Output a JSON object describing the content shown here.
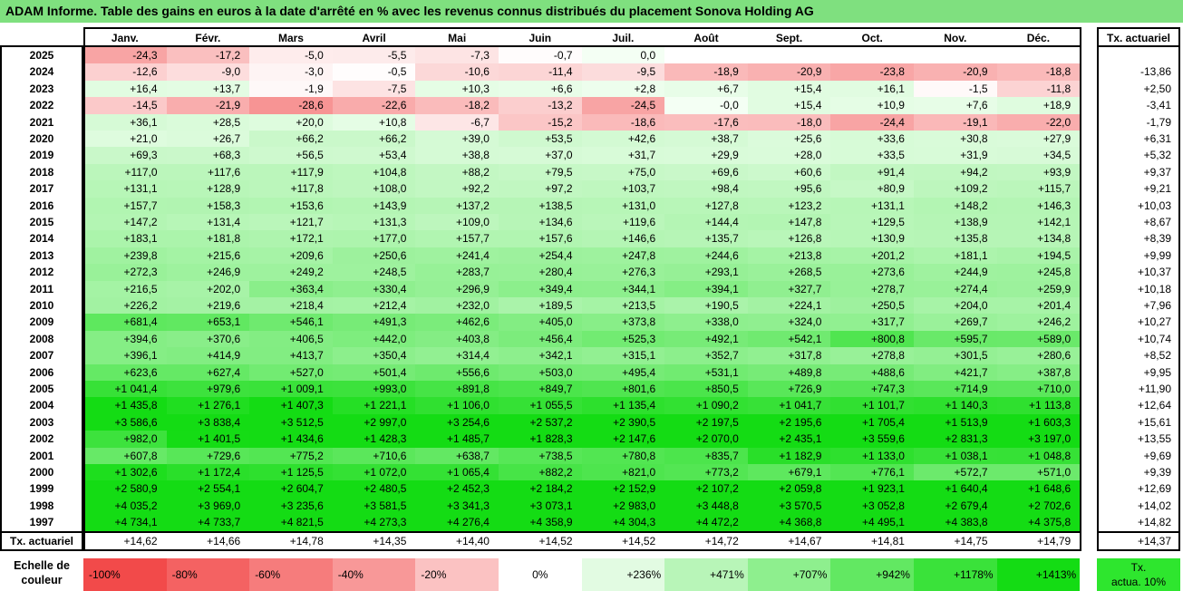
{
  "title": "ADAM Informe. Table des gains en euros à la date d'arrêté en % avec les revenus connus distribués du placement Sonova Holding AG",
  "months": [
    "Janv.",
    "Févr.",
    "Mars",
    "Avril",
    "Mai",
    "Juin",
    "Juil.",
    "Août",
    "Sept.",
    "Oct.",
    "Nov.",
    "Déc."
  ],
  "rate_header": "Tx. actuariel",
  "rows": [
    {
      "year": "2025",
      "values": [
        "-24,3",
        "-17,2",
        "-5,0",
        "-5,5",
        "-7,3",
        "-0,7",
        "0,0",
        "",
        "",
        "",
        "",
        ""
      ],
      "rate": ""
    },
    {
      "year": "2024",
      "values": [
        "-12,6",
        "-9,0",
        "-3,0",
        "-0,5",
        "-10,6",
        "-11,4",
        "-9,5",
        "-18,9",
        "-20,9",
        "-23,8",
        "-20,9",
        "-18,8"
      ],
      "rate": "-13,86"
    },
    {
      "year": "2023",
      "values": [
        "+16,4",
        "+13,7",
        "-1,9",
        "-7,5",
        "+10,3",
        "+6,6",
        "+2,8",
        "+6,7",
        "+15,4",
        "+16,1",
        "-1,5",
        "-11,8"
      ],
      "rate": "+2,50"
    },
    {
      "year": "2022",
      "values": [
        "-14,5",
        "-21,9",
        "-28,6",
        "-22,6",
        "-18,2",
        "-13,2",
        "-24,5",
        "-0,0",
        "+15,4",
        "+10,9",
        "+7,6",
        "+18,9"
      ],
      "rate": "-3,41"
    },
    {
      "year": "2021",
      "values": [
        "+36,1",
        "+28,5",
        "+20,0",
        "+10,8",
        "-6,7",
        "-15,2",
        "-18,6",
        "-17,6",
        "-18,0",
        "-24,4",
        "-19,1",
        "-22,0"
      ],
      "rate": "-1,79"
    },
    {
      "year": "2020",
      "values": [
        "+21,0",
        "+26,7",
        "+66,2",
        "+66,2",
        "+39,0",
        "+53,5",
        "+42,6",
        "+38,7",
        "+25,6",
        "+33,6",
        "+30,8",
        "+27,9"
      ],
      "rate": "+6,31"
    },
    {
      "year": "2019",
      "values": [
        "+69,3",
        "+68,3",
        "+56,5",
        "+53,4",
        "+38,8",
        "+37,0",
        "+31,7",
        "+29,9",
        "+28,0",
        "+33,5",
        "+31,9",
        "+34,5"
      ],
      "rate": "+5,32"
    },
    {
      "year": "2018",
      "values": [
        "+117,0",
        "+117,6",
        "+117,9",
        "+104,8",
        "+88,2",
        "+79,5",
        "+75,0",
        "+69,6",
        "+60,6",
        "+91,4",
        "+94,2",
        "+93,9"
      ],
      "rate": "+9,37"
    },
    {
      "year": "2017",
      "values": [
        "+131,1",
        "+128,9",
        "+117,8",
        "+108,0",
        "+92,2",
        "+97,2",
        "+103,7",
        "+98,4",
        "+95,6",
        "+80,9",
        "+109,2",
        "+115,7"
      ],
      "rate": "+9,21"
    },
    {
      "year": "2016",
      "values": [
        "+157,7",
        "+158,3",
        "+153,6",
        "+143,9",
        "+137,2",
        "+138,5",
        "+131,0",
        "+127,8",
        "+123,2",
        "+131,1",
        "+148,2",
        "+146,3"
      ],
      "rate": "+10,03"
    },
    {
      "year": "2015",
      "values": [
        "+147,2",
        "+131,4",
        "+121,7",
        "+131,3",
        "+109,0",
        "+134,6",
        "+119,6",
        "+144,4",
        "+147,8",
        "+129,5",
        "+138,9",
        "+142,1"
      ],
      "rate": "+8,67"
    },
    {
      "year": "2014",
      "values": [
        "+183,1",
        "+181,8",
        "+172,1",
        "+177,0",
        "+157,7",
        "+157,6",
        "+146,6",
        "+135,7",
        "+126,8",
        "+130,9",
        "+135,8",
        "+134,8"
      ],
      "rate": "+8,39"
    },
    {
      "year": "2013",
      "values": [
        "+239,8",
        "+215,6",
        "+209,6",
        "+250,6",
        "+241,4",
        "+254,4",
        "+247,8",
        "+244,6",
        "+213,8",
        "+201,2",
        "+181,1",
        "+194,5"
      ],
      "rate": "+9,99"
    },
    {
      "year": "2012",
      "values": [
        "+272,3",
        "+246,9",
        "+249,2",
        "+248,5",
        "+283,7",
        "+280,4",
        "+276,3",
        "+293,1",
        "+268,5",
        "+273,6",
        "+244,9",
        "+245,8"
      ],
      "rate": "+10,37"
    },
    {
      "year": "2011",
      "values": [
        "+216,5",
        "+202,0",
        "+363,4",
        "+330,4",
        "+296,9",
        "+349,4",
        "+344,1",
        "+394,1",
        "+327,7",
        "+278,7",
        "+274,4",
        "+259,9"
      ],
      "rate": "+10,18"
    },
    {
      "year": "2010",
      "values": [
        "+226,2",
        "+219,6",
        "+218,4",
        "+212,4",
        "+232,0",
        "+189,5",
        "+213,5",
        "+190,5",
        "+224,1",
        "+250,5",
        "+204,0",
        "+201,4"
      ],
      "rate": "+7,96"
    },
    {
      "year": "2009",
      "values": [
        "+681,4",
        "+653,1",
        "+546,1",
        "+491,3",
        "+462,6",
        "+405,0",
        "+373,8",
        "+338,0",
        "+324,0",
        "+317,7",
        "+269,7",
        "+246,2"
      ],
      "rate": "+10,27"
    },
    {
      "year": "2008",
      "values": [
        "+394,6",
        "+370,6",
        "+406,5",
        "+442,0",
        "+403,8",
        "+456,4",
        "+525,3",
        "+492,1",
        "+542,1",
        "+800,8",
        "+595,7",
        "+589,0"
      ],
      "rate": "+10,74"
    },
    {
      "year": "2007",
      "values": [
        "+396,1",
        "+414,9",
        "+413,7",
        "+350,4",
        "+314,4",
        "+342,1",
        "+315,1",
        "+352,7",
        "+317,8",
        "+278,8",
        "+301,5",
        "+280,6"
      ],
      "rate": "+8,52"
    },
    {
      "year": "2006",
      "values": [
        "+623,6",
        "+627,4",
        "+527,0",
        "+501,4",
        "+556,6",
        "+503,0",
        "+495,4",
        "+531,1",
        "+489,8",
        "+488,6",
        "+421,7",
        "+387,8"
      ],
      "rate": "+9,95"
    },
    {
      "year": "2005",
      "values": [
        "+1 041,4",
        "+979,6",
        "+1 009,1",
        "+993,0",
        "+891,8",
        "+849,7",
        "+801,6",
        "+850,5",
        "+726,9",
        "+747,3",
        "+714,9",
        "+710,0"
      ],
      "rate": "+11,90"
    },
    {
      "year": "2004",
      "values": [
        "+1 435,8",
        "+1 276,1",
        "+1 407,3",
        "+1 221,1",
        "+1 106,0",
        "+1 055,5",
        "+1 135,4",
        "+1 090,2",
        "+1 041,7",
        "+1 101,7",
        "+1 140,3",
        "+1 113,8"
      ],
      "rate": "+12,64"
    },
    {
      "year": "2003",
      "values": [
        "+3 586,6",
        "+3 838,4",
        "+3 512,5",
        "+2 997,0",
        "+3 254,6",
        "+2 537,2",
        "+2 390,5",
        "+2 197,5",
        "+2 195,6",
        "+1 705,4",
        "+1 513,9",
        "+1 603,3"
      ],
      "rate": "+15,61"
    },
    {
      "year": "2002",
      "values": [
        "+982,0",
        "+1 401,5",
        "+1 434,6",
        "+1 428,3",
        "+1 485,7",
        "+1 828,3",
        "+2 147,6",
        "+2 070,0",
        "+2 435,1",
        "+3 559,6",
        "+2 831,3",
        "+3 197,0"
      ],
      "rate": "+13,55"
    },
    {
      "year": "2001",
      "values": [
        "+607,8",
        "+729,6",
        "+775,2",
        "+710,6",
        "+638,7",
        "+738,5",
        "+780,8",
        "+835,7",
        "+1 182,9",
        "+1 133,0",
        "+1 038,1",
        "+1 048,8"
      ],
      "rate": "+9,69"
    },
    {
      "year": "2000",
      "values": [
        "+1 302,6",
        "+1 172,4",
        "+1 125,5",
        "+1 072,0",
        "+1 065,4",
        "+882,2",
        "+821,0",
        "+773,2",
        "+679,1",
        "+776,1",
        "+572,7",
        "+571,0"
      ],
      "rate": "+9,39"
    },
    {
      "year": "1999",
      "values": [
        "+2 580,9",
        "+2 554,1",
        "+2 604,7",
        "+2 480,5",
        "+2 452,3",
        "+2 184,2",
        "+2 152,9",
        "+2 107,2",
        "+2 059,8",
        "+1 923,1",
        "+1 640,4",
        "+1 648,6"
      ],
      "rate": "+12,69"
    },
    {
      "year": "1998",
      "values": [
        "+4 035,2",
        "+3 969,0",
        "+3 235,6",
        "+3 581,5",
        "+3 341,3",
        "+3 073,1",
        "+2 983,0",
        "+3 448,8",
        "+3 570,5",
        "+3 052,8",
        "+2 679,4",
        "+2 702,6"
      ],
      "rate": "+14,02"
    },
    {
      "year": "1997",
      "values": [
        "+4 734,1",
        "+4 733,7",
        "+4 821,5",
        "+4 273,3",
        "+4 276,4",
        "+4 358,9",
        "+4 304,3",
        "+4 472,2",
        "+4 368,8",
        "+4 495,1",
        "+4 383,8",
        "+4 375,8"
      ],
      "rate": "+14,82"
    }
  ],
  "footer": {
    "label": "Tx. actuariel",
    "values": [
      "+14,62",
      "+14,66",
      "+14,78",
      "+14,35",
      "+14,40",
      "+14,52",
      "+14,52",
      "+14,72",
      "+14,67",
      "+14,81",
      "+14,75",
      "+14,79"
    ],
    "rate": "+14,37"
  },
  "legend": {
    "label_line1": "Echelle de",
    "label_line2": "couleur",
    "swatches": [
      {
        "text": "-100%",
        "color": "#f24a4a"
      },
      {
        "text": "-80%",
        "color": "#f46262"
      },
      {
        "text": "-60%",
        "color": "#f67c7c"
      },
      {
        "text": "-40%",
        "color": "#f89898"
      },
      {
        "text": "-20%",
        "color": "#fbc2c2"
      },
      {
        "text": "0%",
        "color": "#ffffff"
      },
      {
        "text": "+236%",
        "color": "#e2fbe2"
      },
      {
        "text": "+471%",
        "color": "#b8f5b8"
      },
      {
        "text": "+707%",
        "color": "#8eef8e"
      },
      {
        "text": "+942%",
        "color": "#62e862"
      },
      {
        "text": "+1178%",
        "color": "#3ae23a"
      },
      {
        "text": "+1413%",
        "color": "#14dc14"
      }
    ],
    "rate_line1": "Tx.",
    "rate_line2": "actua. 10%",
    "rate_color": "#2ee62e"
  }
}
